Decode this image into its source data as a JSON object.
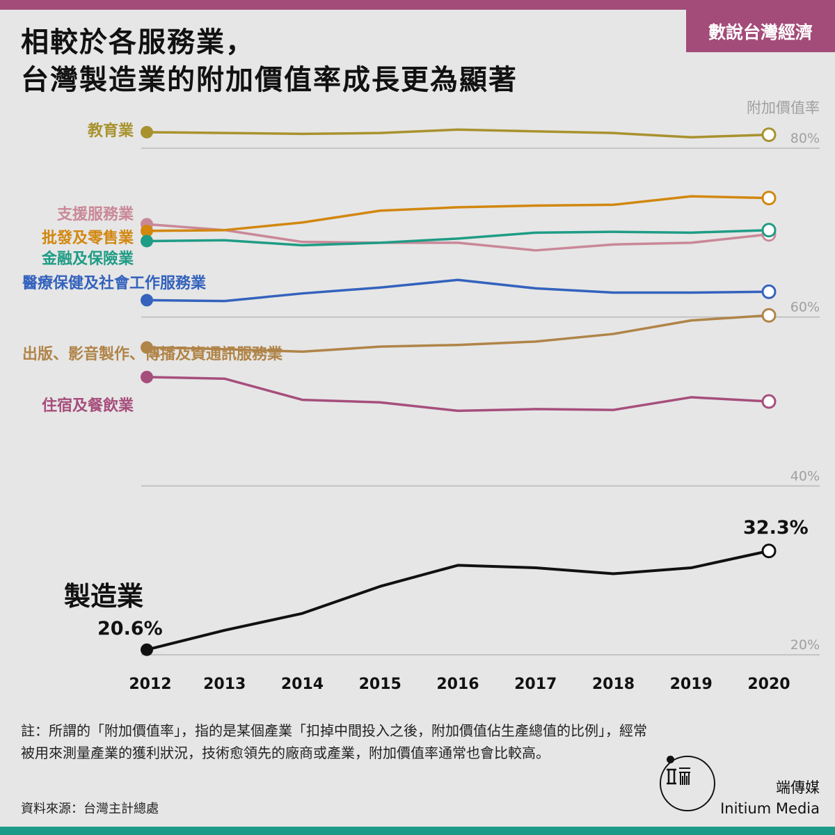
{
  "tag": "數說台灣經濟",
  "title": {
    "line1": "相較於各服務業，",
    "line2": "台灣製造業的附加價值率成長更為顯著"
  },
  "chart_data": {
    "type": "line",
    "ylabel": "附加價值率",
    "y_ticks": [
      "80%",
      "60%",
      "40%",
      "20%"
    ],
    "y_tick_values": [
      80,
      60,
      40,
      20
    ],
    "x": [
      2012,
      2013,
      2014,
      2015,
      2016,
      2017,
      2018,
      2019,
      2020
    ],
    "grid": true,
    "series": [
      {
        "name": "教育業",
        "color": "#a8922e",
        "values": [
          81.9,
          81.8,
          81.7,
          81.8,
          82.2,
          82.0,
          81.8,
          81.3,
          81.6
        ]
      },
      {
        "name": "支援服務業",
        "color": "#c98898",
        "values": [
          71.0,
          70.3,
          68.9,
          68.8,
          68.8,
          67.9,
          68.6,
          68.8,
          69.8
        ]
      },
      {
        "name": "批發及零售業",
        "color": "#d2870f",
        "values": [
          70.2,
          70.3,
          71.2,
          72.6,
          73.0,
          73.2,
          73.3,
          74.3,
          74.1
        ]
      },
      {
        "name": "金融及保險業",
        "color": "#1f9c85",
        "values": [
          69.0,
          69.1,
          68.5,
          68.8,
          69.3,
          70.0,
          70.1,
          70.0,
          70.3
        ]
      },
      {
        "name": "醫療保健及社會工作服務業",
        "color": "#3462bd",
        "values": [
          62.0,
          61.9,
          62.8,
          63.5,
          64.4,
          63.4,
          62.9,
          62.9,
          63.0
        ]
      },
      {
        "name": "出版、影音製作、傳播及資通訊服務業",
        "color": "#b08448",
        "values": [
          56.4,
          56.2,
          55.9,
          56.5,
          56.7,
          57.1,
          58.0,
          59.6,
          60.2
        ]
      },
      {
        "name": "住宿及餐飲業",
        "color": "#a64e7c",
        "values": [
          52.9,
          52.7,
          50.2,
          49.9,
          48.9,
          49.1,
          49.0,
          50.5,
          50.0
        ]
      },
      {
        "name": "製造業",
        "color": "#111111",
        "values": [
          20.6,
          22.9,
          24.9,
          28.1,
          30.6,
          30.3,
          29.6,
          30.3,
          32.3
        ]
      }
    ],
    "annotations": {
      "manufacturing_start": "20.6%",
      "manufacturing_end": "32.3%"
    }
  },
  "labels": {
    "education": "教育業",
    "support": "支援服務業",
    "retail": "批發及零售業",
    "finance": "金融及保險業",
    "health": "醫療保健及社會工作服務業",
    "publishing": "出版、影音製作、傳播及資通訊服務業",
    "hospitality": "住宿及餐飲業",
    "manufacturing": "製造業"
  },
  "note": "註：所謂的「附加價值率」，指的是某個產業「扣掉中間投入之後，附加價值佔生產總值的比例」，經常被用來測量產業的獲利狀況，技術愈領先的廠商或產業，附加價值率通常也會比較高。",
  "source": "資料來源：台灣主計總處",
  "brand": {
    "cn": "端傳媒",
    "en": "Initium Media",
    "logo_mark": "Ш 而"
  }
}
